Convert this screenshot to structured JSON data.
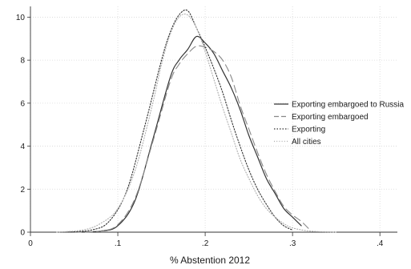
{
  "chart_data": {
    "type": "line",
    "title": "",
    "xlabel": "% Abstention 2012",
    "ylabel": "",
    "xlim": [
      0,
      0.42
    ],
    "ylim": [
      0,
      10.5
    ],
    "x_ticks": [
      0,
      0.1,
      0.2,
      0.3,
      0.4
    ],
    "x_tick_labels": [
      "0",
      ".1",
      ".2",
      ".3",
      ".4"
    ],
    "y_ticks": [
      0,
      2,
      4,
      6,
      8,
      10
    ],
    "y_tick_labels": [
      "0",
      "2",
      "4",
      "6",
      "8",
      "10"
    ],
    "grid": true,
    "legend_position": "right",
    "series": [
      {
        "name": "Exporting embargoed to Russia",
        "style": "solid",
        "color": "#333333",
        "x": [
          0.05,
          0.08,
          0.1,
          0.12,
          0.14,
          0.16,
          0.17,
          0.18,
          0.19,
          0.2,
          0.21,
          0.22,
          0.23,
          0.24,
          0.25,
          0.26,
          0.27,
          0.28,
          0.29,
          0.3,
          0.31
        ],
        "y": [
          0.0,
          0.05,
          0.3,
          1.5,
          4.3,
          7.2,
          8.0,
          8.5,
          9.1,
          8.8,
          8.3,
          7.5,
          6.7,
          5.7,
          4.5,
          3.5,
          2.5,
          1.8,
          1.1,
          0.7,
          0.3
        ]
      },
      {
        "name": "Exporting embargoed",
        "style": "dashed",
        "color": "#888888",
        "x": [
          0.05,
          0.08,
          0.1,
          0.12,
          0.14,
          0.16,
          0.17,
          0.18,
          0.19,
          0.2,
          0.21,
          0.22,
          0.23,
          0.24,
          0.25,
          0.26,
          0.27,
          0.28,
          0.29,
          0.3,
          0.31,
          0.32
        ],
        "y": [
          0.0,
          0.05,
          0.35,
          1.6,
          4.2,
          7.0,
          7.8,
          8.3,
          8.65,
          8.6,
          8.4,
          8.0,
          7.2,
          5.9,
          4.8,
          3.7,
          2.7,
          1.9,
          1.2,
          0.8,
          0.5,
          0.1
        ]
      },
      {
        "name": "Exporting",
        "style": "dotted",
        "color": "#333333",
        "x": [
          0.04,
          0.07,
          0.09,
          0.11,
          0.13,
          0.15,
          0.16,
          0.17,
          0.18,
          0.19,
          0.2,
          0.21,
          0.22,
          0.23,
          0.24,
          0.25,
          0.26,
          0.27,
          0.28,
          0.29,
          0.3
        ],
        "y": [
          0.0,
          0.1,
          0.5,
          1.9,
          4.8,
          8.0,
          9.3,
          10.1,
          10.3,
          9.5,
          8.6,
          7.6,
          6.5,
          5.2,
          4.0,
          2.9,
          2.0,
          1.3,
          0.7,
          0.3,
          0.1
        ]
      },
      {
        "name": "All cities",
        "style": "dotted",
        "color": "#aaaaaa",
        "x": [
          0.03,
          0.06,
          0.08,
          0.1,
          0.12,
          0.14,
          0.15,
          0.16,
          0.17,
          0.18,
          0.19,
          0.2,
          0.21,
          0.22,
          0.23,
          0.24,
          0.25,
          0.26,
          0.27,
          0.28,
          0.29,
          0.3,
          0.32,
          0.35
        ],
        "y": [
          0.0,
          0.1,
          0.4,
          1.1,
          2.9,
          6.0,
          7.8,
          9.2,
          10.0,
          10.1,
          9.5,
          8.4,
          7.1,
          5.8,
          4.6,
          3.4,
          2.5,
          1.7,
          1.1,
          0.7,
          0.4,
          0.2,
          0.05,
          0.0
        ]
      }
    ]
  }
}
